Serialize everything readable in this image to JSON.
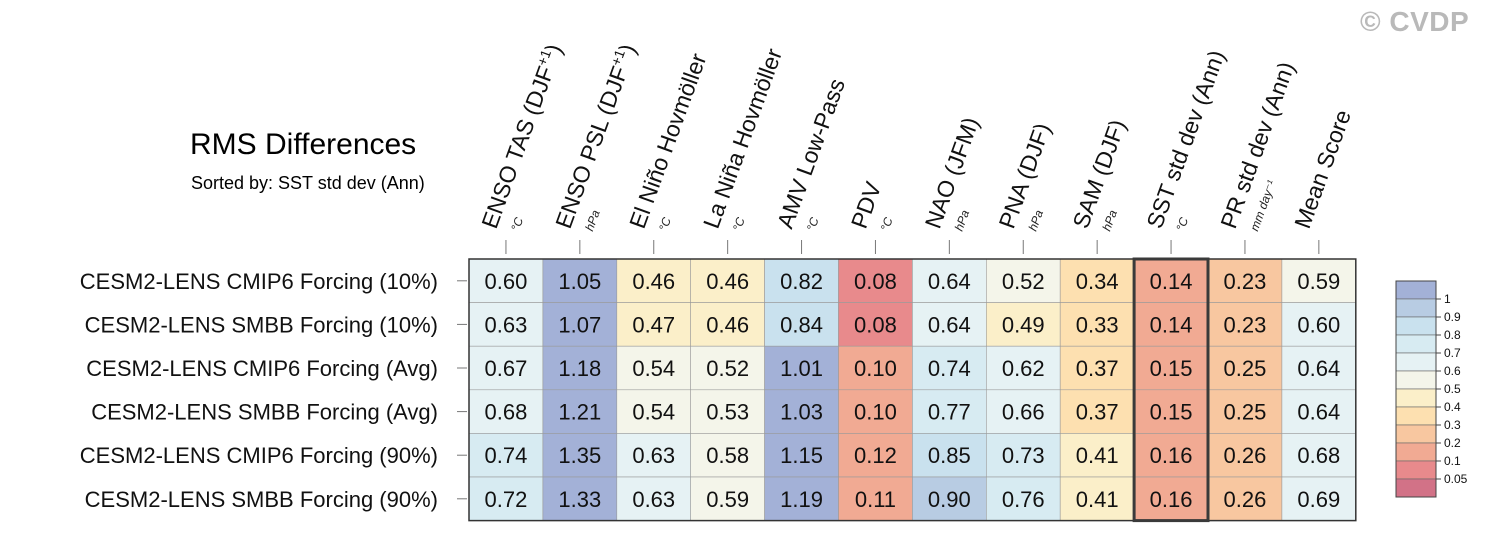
{
  "watermark": "© CVDP",
  "chart_data": {
    "type": "heatmap",
    "title": "RMS Differences",
    "subtitle": "Sorted by: SST std dev (Ann)",
    "columns": [
      {
        "label": "ENSO TAS (DJF",
        "sup": "+1",
        "close": ")",
        "unit": "°C"
      },
      {
        "label": "ENSO PSL (DJF",
        "sup": "+1",
        "close": ")",
        "unit": "hPa"
      },
      {
        "label": "El Niño Hovmöller",
        "sup": "",
        "close": "",
        "unit": "°C"
      },
      {
        "label": "La Niña Hovmöller",
        "sup": "",
        "close": "",
        "unit": "°C"
      },
      {
        "label": "AMV Low-Pass",
        "sup": "",
        "close": "",
        "unit": "°C"
      },
      {
        "label": "PDV",
        "sup": "",
        "close": "",
        "unit": "°C"
      },
      {
        "label": "NAO (JFM)",
        "sup": "",
        "close": "",
        "unit": "hPa"
      },
      {
        "label": "PNA (DJF)",
        "sup": "",
        "close": "",
        "unit": "hPa"
      },
      {
        "label": "SAM (DJF)",
        "sup": "",
        "close": "",
        "unit": "hPa"
      },
      {
        "label": "SST std dev (Ann)",
        "sup": "",
        "close": "",
        "unit": "°C"
      },
      {
        "label": "PR std dev (Ann)",
        "sup": "",
        "close": "",
        "unit": "mm day⁻¹"
      },
      {
        "label": "Mean Score",
        "sup": "",
        "close": "",
        "unit": ""
      }
    ],
    "rows": [
      {
        "label": "CESM2-LENS CMIP6 Forcing (10%)",
        "values": [
          0.6,
          1.05,
          0.46,
          0.46,
          0.82,
          0.08,
          0.64,
          0.52,
          0.34,
          0.14,
          0.23,
          0.59
        ]
      },
      {
        "label": "CESM2-LENS SMBB Forcing (10%)",
        "values": [
          0.63,
          1.07,
          0.47,
          0.46,
          0.84,
          0.08,
          0.64,
          0.49,
          0.33,
          0.14,
          0.23,
          0.6
        ]
      },
      {
        "label": "CESM2-LENS CMIP6 Forcing (Avg)",
        "values": [
          0.67,
          1.18,
          0.54,
          0.52,
          1.01,
          0.1,
          0.74,
          0.62,
          0.37,
          0.15,
          0.25,
          0.64
        ]
      },
      {
        "label": "CESM2-LENS SMBB Forcing (Avg)",
        "values": [
          0.68,
          1.21,
          0.54,
          0.53,
          1.03,
          0.1,
          0.77,
          0.66,
          0.37,
          0.15,
          0.25,
          0.64
        ]
      },
      {
        "label": "CESM2-LENS CMIP6 Forcing (90%)",
        "values": [
          0.74,
          1.35,
          0.63,
          0.58,
          1.15,
          0.12,
          0.85,
          0.73,
          0.41,
          0.16,
          0.26,
          0.68
        ]
      },
      {
        "label": "CESM2-LENS SMBB Forcing (90%)",
        "values": [
          0.72,
          1.33,
          0.63,
          0.59,
          1.19,
          0.11,
          0.9,
          0.76,
          0.41,
          0.16,
          0.26,
          0.69
        ]
      }
    ],
    "sorted_column": "SST std dev (Ann)",
    "colorbar": {
      "labels": [
        "1",
        "0.9",
        "0.8",
        "0.7",
        "0.6",
        "0.5",
        "0.4",
        "0.3",
        "0.2",
        "0.1",
        "0.05"
      ],
      "thresholds": [
        1,
        0.9,
        0.8,
        0.7,
        0.6,
        0.5,
        0.4,
        0.3,
        0.2,
        0.1,
        0.05
      ],
      "colors": [
        "#a3b1d7",
        "#b8cce3",
        "#c9e1ee",
        "#d7ebf2",
        "#e6f2f4",
        "#f4f5ea",
        "#fbefc9",
        "#fde0b0",
        "#f8c7a0",
        "#f1aa93",
        "#e88a8c",
        "#d27287"
      ]
    },
    "value_format": "2 decimals"
  }
}
